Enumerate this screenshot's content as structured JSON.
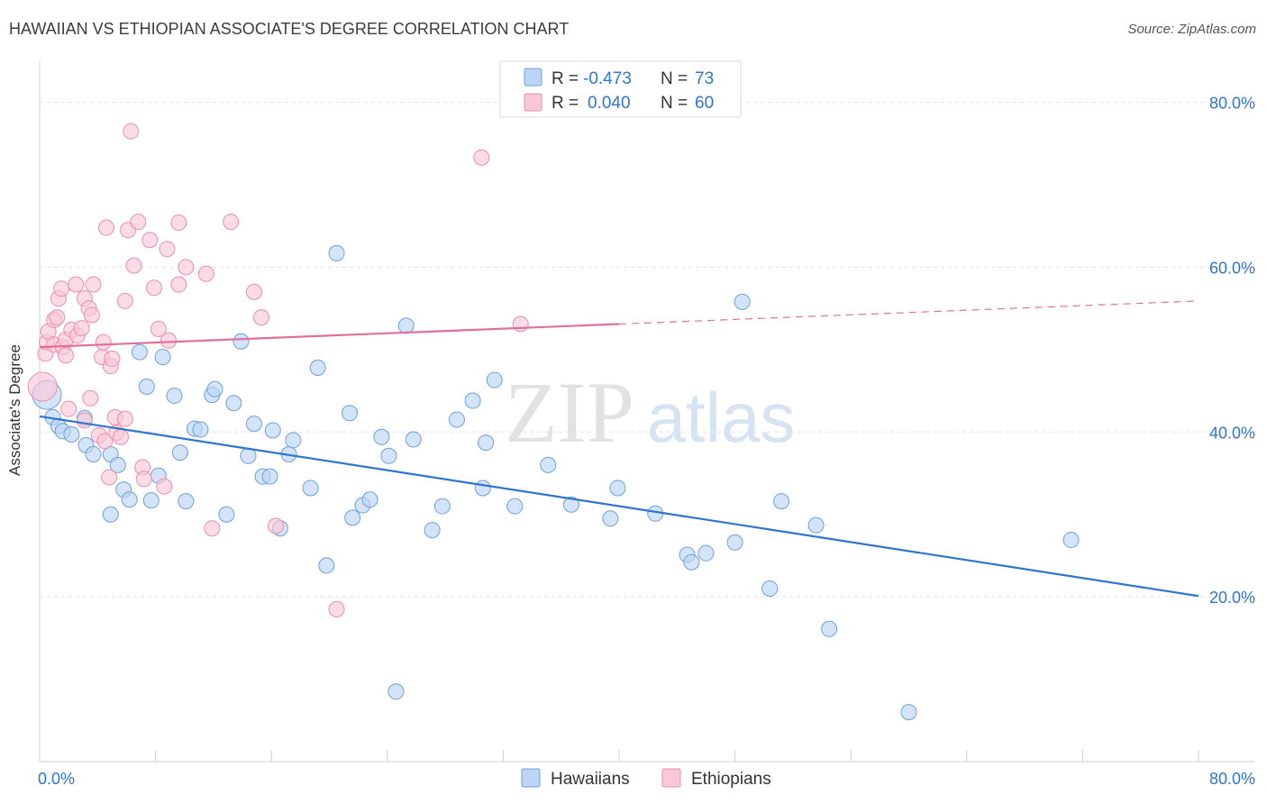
{
  "header": {
    "title": "HAWAIIAN VS ETHIOPIAN ASSOCIATE'S DEGREE CORRELATION CHART",
    "source": "Source: ZipAtlas.com"
  },
  "watermark": {
    "zip": "ZIP",
    "atlas": "atlas"
  },
  "colors": {
    "hawaiians_fill": "#bcd5f5",
    "hawaiians_stroke": "#6f9fd8",
    "hawaiians_line": "#2f74d0",
    "ethiopians_fill": "#f9c8d7",
    "ethiopians_stroke": "#ea8fab",
    "ethiopians_line": "#e0709a",
    "value_text": "#2f74d0"
  },
  "stats": {
    "r_label": "R =",
    "n_label": "N =",
    "rows": [
      {
        "series": "Hawaiians",
        "r": "-0.473",
        "n": "73"
      },
      {
        "series": "Ethiopians",
        "r": "0.040",
        "n": "60"
      }
    ]
  },
  "chart_data": {
    "type": "scatter",
    "title": "HAWAIIAN VS ETHIOPIAN ASSOCIATE'S DEGREE CORRELATION CHART",
    "xlabel": "",
    "ylabel": "Associate's Degree",
    "xlim": [
      0,
      80
    ],
    "ylim": [
      0,
      84
    ],
    "x_tick_labels": [
      {
        "value": 0,
        "label": "0.0%"
      },
      {
        "value": 80,
        "label": "80.0%"
      }
    ],
    "y_tick_labels": [
      {
        "value": 20,
        "label": "20.0%"
      },
      {
        "value": 40,
        "label": "40.0%"
      },
      {
        "value": 60,
        "label": "60.0%"
      },
      {
        "value": 80,
        "label": "80.0%"
      }
    ],
    "grid": true,
    "legend_position": "bottom-center",
    "series": [
      {
        "name": "Hawaiians",
        "trend": {
          "x": [
            0,
            80
          ],
          "y": [
            41.9,
            20.1
          ],
          "dashed_from": null
        },
        "points": [
          [
            0.5,
            44.5
          ],
          [
            0.9,
            41.8
          ],
          [
            1.3,
            40.7
          ],
          [
            1.6,
            40.1
          ],
          [
            2.2,
            39.7
          ],
          [
            3.1,
            41.7
          ],
          [
            3.2,
            38.4
          ],
          [
            3.7,
            37.3
          ],
          [
            4.9,
            30.0
          ],
          [
            4.9,
            37.3
          ],
          [
            5.4,
            36.0
          ],
          [
            5.8,
            33.0
          ],
          [
            6.2,
            31.8
          ],
          [
            6.9,
            49.7
          ],
          [
            7.4,
            45.5
          ],
          [
            7.7,
            31.7
          ],
          [
            8.2,
            34.7
          ],
          [
            8.5,
            49.1
          ],
          [
            9.3,
            44.4
          ],
          [
            9.7,
            37.5
          ],
          [
            10.1,
            31.6
          ],
          [
            10.7,
            40.4
          ],
          [
            11.1,
            40.3
          ],
          [
            11.9,
            44.5
          ],
          [
            12.1,
            45.2
          ],
          [
            12.9,
            30.0
          ],
          [
            13.4,
            43.5
          ],
          [
            13.9,
            51.0
          ],
          [
            14.4,
            37.1
          ],
          [
            14.8,
            41.0
          ],
          [
            15.4,
            34.6
          ],
          [
            15.9,
            34.6
          ],
          [
            16.1,
            40.2
          ],
          [
            16.6,
            28.3
          ],
          [
            17.2,
            37.3
          ],
          [
            17.5,
            39.0
          ],
          [
            18.7,
            33.2
          ],
          [
            19.2,
            47.8
          ],
          [
            19.8,
            23.8
          ],
          [
            20.5,
            61.7
          ],
          [
            21.4,
            42.3
          ],
          [
            21.6,
            29.6
          ],
          [
            22.3,
            31.1
          ],
          [
            22.8,
            31.8
          ],
          [
            23.6,
            39.4
          ],
          [
            24.1,
            37.1
          ],
          [
            24.6,
            8.5
          ],
          [
            25.3,
            52.9
          ],
          [
            25.8,
            39.1
          ],
          [
            27.1,
            28.1
          ],
          [
            27.8,
            31.0
          ],
          [
            28.8,
            41.5
          ],
          [
            29.9,
            43.8
          ],
          [
            30.6,
            33.2
          ],
          [
            30.8,
            38.7
          ],
          [
            31.4,
            46.3
          ],
          [
            32.8,
            31.0
          ],
          [
            35.1,
            36.0
          ],
          [
            36.7,
            31.2
          ],
          [
            39.4,
            29.5
          ],
          [
            39.9,
            33.2
          ],
          [
            42.5,
            30.1
          ],
          [
            44.7,
            25.1
          ],
          [
            45.0,
            24.2
          ],
          [
            46.0,
            25.3
          ],
          [
            48.0,
            26.6
          ],
          [
            48.5,
            55.8
          ],
          [
            50.4,
            21.0
          ],
          [
            51.2,
            31.6
          ],
          [
            53.6,
            28.7
          ],
          [
            54.5,
            16.1
          ],
          [
            60.0,
            6.0
          ],
          [
            71.2,
            26.9
          ]
        ]
      },
      {
        "name": "Ethiopians",
        "trend": {
          "x": [
            0,
            80
          ],
          "y": [
            50.3,
            55.9
          ],
          "dashed_from": 40
        },
        "points": [
          [
            0.2,
            45.5
          ],
          [
            0.4,
            49.5
          ],
          [
            0.5,
            50.9
          ],
          [
            0.6,
            52.2
          ],
          [
            1.0,
            50.6
          ],
          [
            1.0,
            53.6
          ],
          [
            1.2,
            53.9
          ],
          [
            1.3,
            56.2
          ],
          [
            1.5,
            57.4
          ],
          [
            1.6,
            50.3
          ],
          [
            1.8,
            49.3
          ],
          [
            1.8,
            51.2
          ],
          [
            2.0,
            42.8
          ],
          [
            2.2,
            52.4
          ],
          [
            2.5,
            57.9
          ],
          [
            2.6,
            51.7
          ],
          [
            2.9,
            52.6
          ],
          [
            3.1,
            56.2
          ],
          [
            3.1,
            41.4
          ],
          [
            3.4,
            55.0
          ],
          [
            3.5,
            44.1
          ],
          [
            3.6,
            54.2
          ],
          [
            3.7,
            57.9
          ],
          [
            4.1,
            39.6
          ],
          [
            4.3,
            49.1
          ],
          [
            4.4,
            50.9
          ],
          [
            4.5,
            38.9
          ],
          [
            4.6,
            64.8
          ],
          [
            4.8,
            34.5
          ],
          [
            4.9,
            48.0
          ],
          [
            5.0,
            48.9
          ],
          [
            5.2,
            41.8
          ],
          [
            5.3,
            39.9
          ],
          [
            5.6,
            39.4
          ],
          [
            5.9,
            55.9
          ],
          [
            5.9,
            41.6
          ],
          [
            6.1,
            64.5
          ],
          [
            6.3,
            76.5
          ],
          [
            6.5,
            60.2
          ],
          [
            6.8,
            65.5
          ],
          [
            7.1,
            35.7
          ],
          [
            7.2,
            34.3
          ],
          [
            7.6,
            63.3
          ],
          [
            7.9,
            57.5
          ],
          [
            8.2,
            52.5
          ],
          [
            8.6,
            33.4
          ],
          [
            8.8,
            62.2
          ],
          [
            8.9,
            51.1
          ],
          [
            9.6,
            65.4
          ],
          [
            9.6,
            57.9
          ],
          [
            10.1,
            60.0
          ],
          [
            11.5,
            59.2
          ],
          [
            11.9,
            28.3
          ],
          [
            13.2,
            65.5
          ],
          [
            14.8,
            57.0
          ],
          [
            15.3,
            53.9
          ],
          [
            16.3,
            28.6
          ],
          [
            20.5,
            18.5
          ],
          [
            30.5,
            73.3
          ],
          [
            33.2,
            53.1
          ]
        ]
      }
    ]
  },
  "legend": {
    "items": [
      "Hawaiians",
      "Ethiopians"
    ]
  }
}
